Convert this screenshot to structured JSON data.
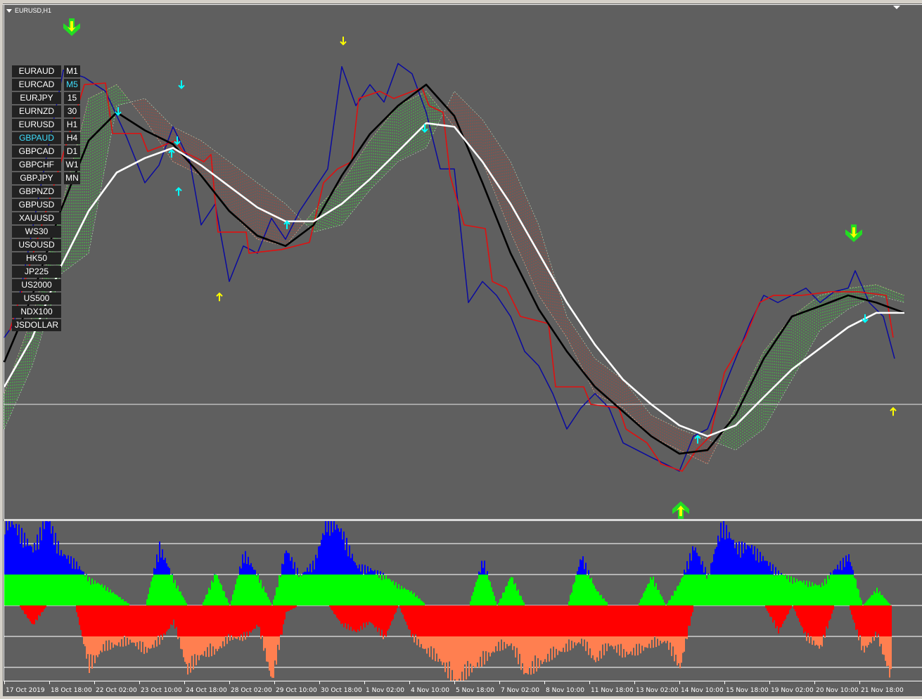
{
  "window_title": "EURUSD,H1",
  "symbol_buttons": [
    {
      "label": "EURAUD",
      "selected": false
    },
    {
      "label": "EURCAD",
      "selected": false
    },
    {
      "label": "EURJPY",
      "selected": false
    },
    {
      "label": "EURNZD",
      "selected": false
    },
    {
      "label": "EURUSD",
      "selected": false
    },
    {
      "label": "GBPAUD",
      "selected": true
    },
    {
      "label": "GBPCAD",
      "selected": false
    },
    {
      "label": "GBPCHF",
      "selected": false
    },
    {
      "label": "GBPJPY",
      "selected": false
    },
    {
      "label": "GBPNZD",
      "selected": false
    },
    {
      "label": "GBPUSD",
      "selected": false
    },
    {
      "label": "XAUUSD",
      "selected": false
    },
    {
      "label": "WS30",
      "selected": false
    },
    {
      "label": "USOUSD",
      "selected": false
    },
    {
      "label": "HK50",
      "selected": false
    },
    {
      "label": "JP225",
      "selected": false
    },
    {
      "label": "US2000",
      "selected": false
    },
    {
      "label": "US500",
      "selected": false
    },
    {
      "label": "NDX100",
      "selected": false
    },
    {
      "label": "JSDOLLAR",
      "selected": false
    }
  ],
  "timeframe_buttons": [
    {
      "label": "M1",
      "selected": false
    },
    {
      "label": "M5",
      "selected": true
    },
    {
      "label": "15",
      "selected": false
    },
    {
      "label": "30",
      "selected": false
    },
    {
      "label": "H1",
      "selected": false
    },
    {
      "label": "H4",
      "selected": false
    },
    {
      "label": "D1",
      "selected": false
    },
    {
      "label": "W1",
      "selected": false
    },
    {
      "label": "MN",
      "selected": false
    }
  ],
  "colors": {
    "background": "#5f5f5f",
    "price": "#0a0aa0",
    "kijun": "#e01010",
    "fast_ma": "#000000",
    "slow_ma": "#ffffff",
    "cloud_bull": "#3fc83f",
    "cloud_bear": "#a8483e",
    "bull_weak": "#00ff00",
    "bull_strong": "#0000ff",
    "bear_weak": "#ff0000",
    "bear_strong": "#ff7f50",
    "signal_big": "#22dd22",
    "signal_small_yellow": "#ffff00",
    "signal_small_cyan": "#00ffff"
  },
  "chart_data": {
    "type": "line",
    "xlabel": "",
    "ylabel": "",
    "x_unit": "H1 bar",
    "x_ticks": [
      {
        "bar": 0,
        "label": "17 Oct 2019"
      },
      {
        "bar": 32,
        "label": "18 Oct 18:00"
      },
      {
        "bar": 64,
        "label": "22 Oct 02:00"
      },
      {
        "bar": 96,
        "label": "23 Oct 10:00"
      },
      {
        "bar": 128,
        "label": "24 Oct 18:00"
      },
      {
        "bar": 160,
        "label": "28 Oct 02:00"
      },
      {
        "bar": 192,
        "label": "29 Oct 10:00"
      },
      {
        "bar": 224,
        "label": "30 Oct 18:00"
      },
      {
        "bar": 256,
        "label": "1 Nov 02:00"
      },
      {
        "bar": 288,
        "label": "4 Nov 10:00"
      },
      {
        "bar": 320,
        "label": "5 Nov 18:00"
      },
      {
        "bar": 352,
        "label": "7 Nov 02:00"
      },
      {
        "bar": 384,
        "label": "8 Nov 10:00"
      },
      {
        "bar": 416,
        "label": "11 Nov 18:00"
      },
      {
        "bar": 448,
        "label": "13 Nov 02:00"
      },
      {
        "bar": 480,
        "label": "14 Nov 10:00"
      },
      {
        "bar": 512,
        "label": "15 Nov 18:00"
      },
      {
        "bar": 544,
        "label": "19 Nov 02:00"
      },
      {
        "bar": 576,
        "label": "20 Nov 10:00"
      },
      {
        "bar": 608,
        "label": "21 Nov 18:00"
      }
    ],
    "y_axis": "not shown (relative level 0-100)",
    "ylim": [
      0,
      100
    ],
    "grid": false,
    "horizontal_line_level": 22.3,
    "series": [
      {
        "key": "price",
        "points": [
          [
            0,
            35.3
          ],
          [
            7,
            38
          ],
          [
            42,
            87.3
          ],
          [
            57,
            85.9
          ],
          [
            72,
            83.2
          ],
          [
            87,
            74.3
          ],
          [
            100,
            65.4
          ],
          [
            110,
            68.8
          ],
          [
            120,
            76.3
          ],
          [
            132,
            69.5
          ],
          [
            140,
            57.2
          ],
          [
            150,
            61.3
          ],
          [
            160,
            46.2
          ],
          [
            170,
            53.1
          ],
          [
            180,
            51.7
          ],
          [
            190,
            58.5
          ],
          [
            200,
            54.4
          ],
          [
            210,
            59.9
          ],
          [
            220,
            64
          ],
          [
            230,
            68.1
          ],
          [
            240,
            88
          ],
          [
            250,
            80.4
          ],
          [
            260,
            84.5
          ],
          [
            270,
            81.1
          ],
          [
            280,
            88.6
          ],
          [
            290,
            86.6
          ],
          [
            300,
            79.1
          ],
          [
            310,
            68.1
          ],
          [
            320,
            68.1
          ],
          [
            330,
            42.1
          ],
          [
            340,
            46.2
          ],
          [
            350,
            43.5
          ],
          [
            360,
            39.4
          ],
          [
            370,
            32.6
          ],
          [
            380,
            29.8
          ],
          [
            390,
            24.4
          ],
          [
            400,
            17.5
          ],
          [
            410,
            21.6
          ],
          [
            420,
            24.4
          ],
          [
            430,
            21.6
          ],
          [
            440,
            14.8
          ],
          [
            450,
            13.4
          ],
          [
            460,
            12
          ],
          [
            470,
            10.7
          ],
          [
            480,
            9.3
          ],
          [
            490,
            16.1
          ],
          [
            500,
            17.5
          ],
          [
            510,
            24.4
          ],
          [
            520,
            31.2
          ],
          [
            530,
            38
          ],
          [
            540,
            43.5
          ],
          [
            550,
            42.1
          ],
          [
            560,
            43.5
          ],
          [
            570,
            44.9
          ],
          [
            580,
            42.1
          ],
          [
            590,
            44.2
          ],
          [
            600,
            44.9
          ],
          [
            605,
            48.3
          ],
          [
            615,
            42.1
          ],
          [
            625,
            39.4
          ],
          [
            633,
            31.2
          ]
        ]
      },
      {
        "key": "kijun",
        "points": [
          [
            4,
            36.7
          ],
          [
            57,
            84.5
          ],
          [
            72,
            84.8
          ],
          [
            77,
            75
          ],
          [
            97,
            75
          ],
          [
            102,
            71.5
          ],
          [
            122,
            73.6
          ],
          [
            127,
            71.5
          ],
          [
            142,
            69.5
          ],
          [
            147,
            70.9
          ],
          [
            152,
            55.8
          ],
          [
            172,
            55.8
          ],
          [
            174,
            51.7
          ],
          [
            197,
            52.4
          ],
          [
            217,
            53.8
          ],
          [
            227,
            65.4
          ],
          [
            237,
            68.1
          ],
          [
            247,
            69.5
          ],
          [
            252,
            81.8
          ],
          [
            267,
            83.2
          ],
          [
            277,
            81.8
          ],
          [
            297,
            83.9
          ],
          [
            302,
            80.4
          ],
          [
            312,
            79.1
          ],
          [
            317,
            66.8
          ],
          [
            327,
            57.2
          ],
          [
            342,
            56.5
          ],
          [
            347,
            46.2
          ],
          [
            357,
            44.9
          ],
          [
            367,
            39.4
          ],
          [
            387,
            38
          ],
          [
            392,
            25.7
          ],
          [
            412,
            25.7
          ],
          [
            417,
            22.3
          ],
          [
            437,
            21.6
          ],
          [
            442,
            17.5
          ],
          [
            457,
            14.8
          ],
          [
            467,
            10.7
          ],
          [
            482,
            9.3
          ],
          [
            492,
            13.4
          ],
          [
            502,
            16.1
          ],
          [
            512,
            28.5
          ],
          [
            527,
            35.3
          ],
          [
            537,
            42.1
          ],
          [
            547,
            43.5
          ],
          [
            567,
            43.5
          ],
          [
            587,
            44.2
          ],
          [
            607,
            44.2
          ],
          [
            627,
            43.5
          ],
          [
            632,
            35.3
          ]
        ]
      },
      {
        "key": "fast_ma",
        "step": 20,
        "values": [
          30.5,
          43.5,
          59.9,
          73.6,
          79.1,
          75.6,
          72.9,
          66.8,
          59.9,
          55.1,
          53.1,
          57.2,
          66.8,
          74.9,
          80.4,
          84.5,
          78.4,
          65.4,
          51.7,
          40.8,
          32.6,
          25.7,
          20.9,
          16.1,
          12.7,
          13.4,
          20.2,
          31.2,
          39.4,
          41.4,
          43.5,
          42.1,
          40.1
        ]
      },
      {
        "key": "slow_ma",
        "step": 20,
        "values": [
          25.7,
          35.3,
          49,
          59.9,
          67.4,
          70.2,
          72.2,
          68.8,
          64.7,
          60.6,
          57.9,
          57.9,
          61.3,
          66.1,
          71.5,
          77,
          76.3,
          69.5,
          61.3,
          51.7,
          42.1,
          33.9,
          27.1,
          22.3,
          18.2,
          16.1,
          18.2,
          23.7,
          29.1,
          33.2,
          37.3,
          40.1,
          40.1
        ]
      }
    ],
    "cloud": {
      "step": 20,
      "span_a": [
        24.4,
        39.4,
        59.9,
        81.8,
        84.5,
        77.7,
        69.5,
        66.8,
        59.9,
        54.4,
        53.1,
        59.9,
        65.4,
        73.6,
        80.4,
        83.2,
        76.3,
        69.5,
        55.8,
        43.5,
        35.3,
        24.4,
        21.6,
        16.1,
        13.4,
        10.7,
        21.6,
        32.6,
        39.4,
        43.5,
        44.9,
        45.6,
        43.5
      ],
      "span_b": [
        17.5,
        29.8,
        47.6,
        51.7,
        80.4,
        81.8,
        76.3,
        73.6,
        69.5,
        65.4,
        61.3,
        55.8,
        57.2,
        64,
        69.5,
        72.2,
        83.2,
        77.7,
        69.5,
        57.2,
        39.4,
        31.2,
        27.1,
        20.2,
        17.5,
        15.5,
        13.4,
        17.5,
        27.1,
        36.7,
        40.8,
        43.5,
        42.1
      ]
    },
    "signals": [
      {
        "type": "big-down",
        "bar": 48,
        "level": 95.2
      },
      {
        "type": "big-down",
        "bar": 604,
        "level": 55.1
      },
      {
        "type": "big-up",
        "bar": 481,
        "level": 2.2
      },
      {
        "type": "yellow-down",
        "bar": 241,
        "level": 93
      },
      {
        "type": "yellow-up",
        "bar": 153,
        "level": 43.2
      },
      {
        "type": "yellow-up",
        "bar": 632,
        "level": 20.9
      },
      {
        "type": "cyan-down",
        "bar": 126,
        "level": 84.5
      },
      {
        "type": "cyan-down",
        "bar": 81,
        "level": 79.3
      },
      {
        "type": "cyan-down",
        "bar": 123,
        "level": 73.6
      },
      {
        "type": "cyan-down",
        "bar": 299,
        "level": 76
      },
      {
        "type": "cyan-down",
        "bar": 612,
        "level": 39
      },
      {
        "type": "cyan-up",
        "bar": 119,
        "level": 71.1
      },
      {
        "type": "cyan-up",
        "bar": 124,
        "level": 63.7
      },
      {
        "type": "cyan-up",
        "bar": 201,
        "level": 57.2
      },
      {
        "type": "cyan-up",
        "bar": 493,
        "level": 15.5
      }
    ],
    "histogram": {
      "type": "bar",
      "levels": [
        2,
        1,
        0,
        -1,
        -2
      ],
      "step": 10,
      "bull": [
        2.7,
        2.3,
        1.7,
        2.7,
        1.6,
        1.3,
        0.8,
        0.6,
        0.3,
        0,
        0,
        1.8,
        0.8,
        0,
        0,
        1.0,
        0,
        1.6,
        0.9,
        0,
        1.7,
        0.9,
        1.3,
        2.7,
        2.2,
        1.2,
        1.1,
        0.9,
        0.6,
        0.4,
        0,
        0,
        0,
        0,
        1.4,
        0,
        0.9,
        0,
        0,
        0,
        0,
        1.5,
        0.5,
        0,
        0,
        0,
        0.9,
        0,
        0.7,
        1.8,
        0.9,
        2.5,
        1.8,
        1.8,
        1.4,
        1.0,
        0.8,
        0.7,
        0.6,
        1.1,
        1.5,
        0,
        0.5,
        0
      ],
      "bear": [
        0,
        0,
        0.6,
        0,
        0,
        0,
        1.9,
        1.3,
        1.2,
        1.1,
        1.4,
        1.1,
        0.5,
        2.0,
        1.5,
        1.4,
        1.0,
        1.0,
        0.6,
        2.3,
        0.2,
        0,
        0,
        0,
        0.6,
        0.8,
        0.5,
        1.0,
        0,
        1.0,
        1.4,
        1.7,
        2.4,
        2.0,
        1.7,
        1.3,
        1.2,
        2.1,
        1.8,
        1.5,
        1.3,
        1.1,
        1.7,
        1.2,
        1.5,
        1.4,
        1.2,
        1.1,
        1.9,
        0,
        0,
        0,
        0,
        0,
        0,
        0.8,
        0,
        1.0,
        1.3,
        0,
        0,
        1.4,
        0.9,
        2.2
      ]
    }
  }
}
